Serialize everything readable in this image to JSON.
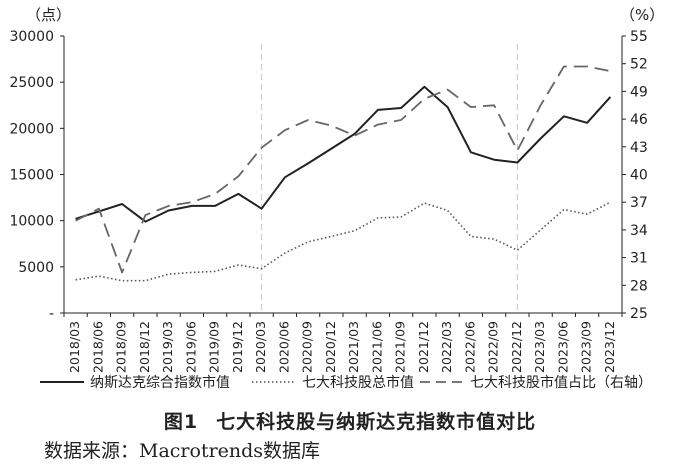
{
  "caption": {
    "figure_number": "图1",
    "title": "七大科技股与纳斯达克指数市值对比"
  },
  "source": "数据来源：Macrotrends数据库",
  "chart_data": {
    "type": "line",
    "x": [
      "2018/03",
      "2018/06",
      "2018/09",
      "2018/12",
      "2019/03",
      "2019/06",
      "2019/09",
      "2019/12",
      "2020/03",
      "2020/06",
      "2020/09",
      "2020/12",
      "2021/03",
      "2021/06",
      "2021/09",
      "2021/12",
      "2022/03",
      "2022/06",
      "2022/09",
      "2022/12",
      "2023/03",
      "2023/06",
      "2023/09",
      "2023/12"
    ],
    "left_axis": {
      "unit": "（点）",
      "ylim": [
        0,
        30000
      ],
      "ticks": [
        "-",
        "5000",
        "10000",
        "15000",
        "20000",
        "25000",
        "30000"
      ],
      "tick_values": [
        0,
        5000,
        10000,
        15000,
        20000,
        25000,
        30000
      ]
    },
    "right_axis": {
      "unit": "（%）",
      "ylim": [
        25,
        55
      ],
      "ticks": [
        "25",
        "28",
        "31",
        "34",
        "37",
        "40",
        "43",
        "46",
        "49",
        "52",
        "55"
      ]
    },
    "vertical_markers": [
      "2020/03",
      "2022/12"
    ],
    "series": [
      {
        "name": "纳斯达克综合指数市值",
        "axis": "left",
        "style": "solid",
        "color": "#222222",
        "values": [
          10200,
          11000,
          11800,
          9900,
          11100,
          11600,
          11600,
          12900,
          11300,
          14700,
          16200,
          17800,
          19400,
          22000,
          22200,
          24500,
          22300,
          17400,
          16600,
          16300,
          18900,
          21300,
          20600,
          23400
        ]
      },
      {
        "name": "七大科技股总市值",
        "axis": "left",
        "style": "dotted",
        "color": "#555555",
        "values": [
          3600,
          4000,
          3500,
          3500,
          4200,
          4400,
          4500,
          5200,
          4800,
          6500,
          7700,
          8300,
          8900,
          10300,
          10400,
          11900,
          11100,
          8300,
          8000,
          6800,
          9000,
          11200,
          10700,
          12000
        ]
      },
      {
        "name": "七大科技股市值占比（右轴）",
        "axis": "right",
        "style": "dashed",
        "color": "#666666",
        "values": [
          35.0,
          36.3,
          29.4,
          35.6,
          36.6,
          37.0,
          37.9,
          39.8,
          42.9,
          44.8,
          45.9,
          45.3,
          44.2,
          45.4,
          45.9,
          48.2,
          49.2,
          47.3,
          47.5,
          42.6,
          47.5,
          51.7,
          51.7,
          51.2
        ]
      }
    ]
  }
}
